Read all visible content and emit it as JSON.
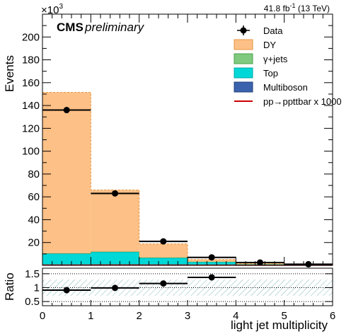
{
  "chart_data": {
    "type": "bar",
    "stacked": true,
    "header": {
      "experiment": "CMS",
      "status": "preliminary",
      "lumi_text": "41.8 fb",
      "lumi_exp": "-1",
      "energy_text": "(13 TeV)"
    },
    "xlabel": "light jet multiplicity",
    "ylabel": "Events",
    "y_scale_label": "×10",
    "y_scale_exp": "3",
    "xlim": [
      0,
      6
    ],
    "ylim": [
      0,
      220
    ],
    "y_multiplier": 1000,
    "x_ticks": [
      0,
      1,
      2,
      3,
      4,
      5,
      6
    ],
    "y_ticks": [
      20,
      40,
      60,
      80,
      100,
      120,
      140,
      160,
      180,
      200
    ],
    "bins": [
      [
        0,
        1
      ],
      [
        1,
        2
      ],
      [
        2,
        3
      ],
      [
        3,
        4
      ],
      [
        4,
        5
      ],
      [
        5,
        6
      ]
    ],
    "series": [
      {
        "name": "Multiboson",
        "color": "#3a62ad",
        "values": [
          0.3,
          0.3,
          0.2,
          0.1,
          0.05,
          0.02
        ]
      },
      {
        "name": "Top",
        "color": "#00d7d7",
        "values": [
          10.0,
          11.5,
          6.5,
          3.0,
          1.0,
          0.4
        ]
      },
      {
        "name": "γ+jets",
        "color": "#7fca7f",
        "values": [
          0.2,
          0.2,
          0.1,
          0.05,
          0.02,
          0.01
        ]
      },
      {
        "name": "DY",
        "color": "#fdc086",
        "values": [
          141.0,
          54.0,
          12.0,
          2.0,
          0.6,
          0.2
        ]
      }
    ],
    "signal": {
      "name": "pp→ppttbar x 1000",
      "color": "#cc0000",
      "values": [
        0.3,
        0.4,
        0.3,
        0.2,
        0.1,
        0.05
      ]
    },
    "data": {
      "name": "Data",
      "x": [
        0.5,
        1.5,
        2.5,
        3.5,
        4.5,
        5.5
      ],
      "y": [
        136,
        63,
        21,
        7,
        2.5,
        1
      ]
    },
    "legend_position": "top-right",
    "legend_order": [
      "Data",
      "DY",
      "γ+jets",
      "Top",
      "Multiboson",
      "pp→ppttbar x 1000"
    ],
    "ratio": {
      "ylabel": "Ratio",
      "ylim": [
        0.35,
        1.7
      ],
      "y_ticks": [
        0.5,
        1,
        1.5
      ],
      "x": [
        0.5,
        1.5,
        2.5,
        3.5
      ],
      "y": [
        0.91,
        0.99,
        1.15,
        1.37
      ],
      "gridlines": [
        0.5,
        1.0,
        1.5
      ],
      "uncertainty_band": [
        0.75,
        1.25
      ],
      "band_color": "#4f9a9a"
    }
  }
}
